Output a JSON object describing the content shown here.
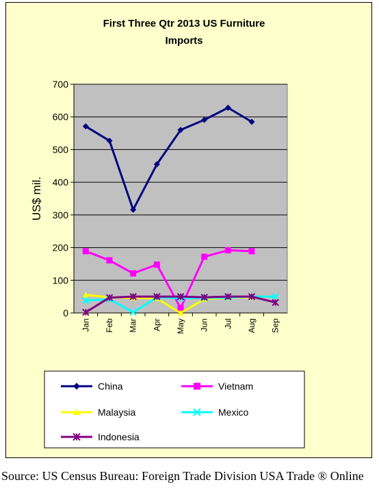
{
  "chart_data": {
    "type": "line",
    "title": "First Three Qtr 2013 US Furniture Imports",
    "title_lines": [
      "First Three Qtr 2013 US Furniture",
      "Imports"
    ],
    "xlabel": "",
    "ylabel": "US$ mil.",
    "categories": [
      "Jan",
      "Feb",
      "Mar",
      "Apr",
      "May",
      "Jun",
      "Jul",
      "Aug",
      "Sep"
    ],
    "ylim": [
      0,
      700
    ],
    "yticks": [
      0,
      100,
      200,
      300,
      400,
      500,
      600,
      700
    ],
    "grid": true,
    "legend_position": "bottom",
    "series": [
      {
        "name": "China",
        "color": "#000080",
        "marker": "diamond",
        "values": [
          571,
          527,
          316,
          455,
          560,
          591,
          628,
          585,
          null
        ]
      },
      {
        "name": "Vietnam",
        "color": "#ff00ff",
        "marker": "square",
        "values": [
          189,
          161,
          121,
          148,
          15,
          172,
          192,
          189,
          null
        ]
      },
      {
        "name": "Malaysia",
        "color": "#ffff00",
        "marker": "triangle",
        "values": [
          55,
          48,
          46,
          44,
          0,
          42,
          46,
          48,
          null
        ]
      },
      {
        "name": "Mexico",
        "color": "#00ffff",
        "marker": "x",
        "values": [
          38,
          42,
          2,
          48,
          45,
          46,
          47,
          50,
          50
        ]
      },
      {
        "name": "Indonesia",
        "color": "#800080",
        "marker": "asterisk",
        "values": [
          2,
          47,
          50,
          50,
          50,
          48,
          50,
          50,
          32
        ]
      }
    ]
  },
  "source_text": "Source: US Census Bureau: Foreign Trade Division USA Trade ® Online"
}
